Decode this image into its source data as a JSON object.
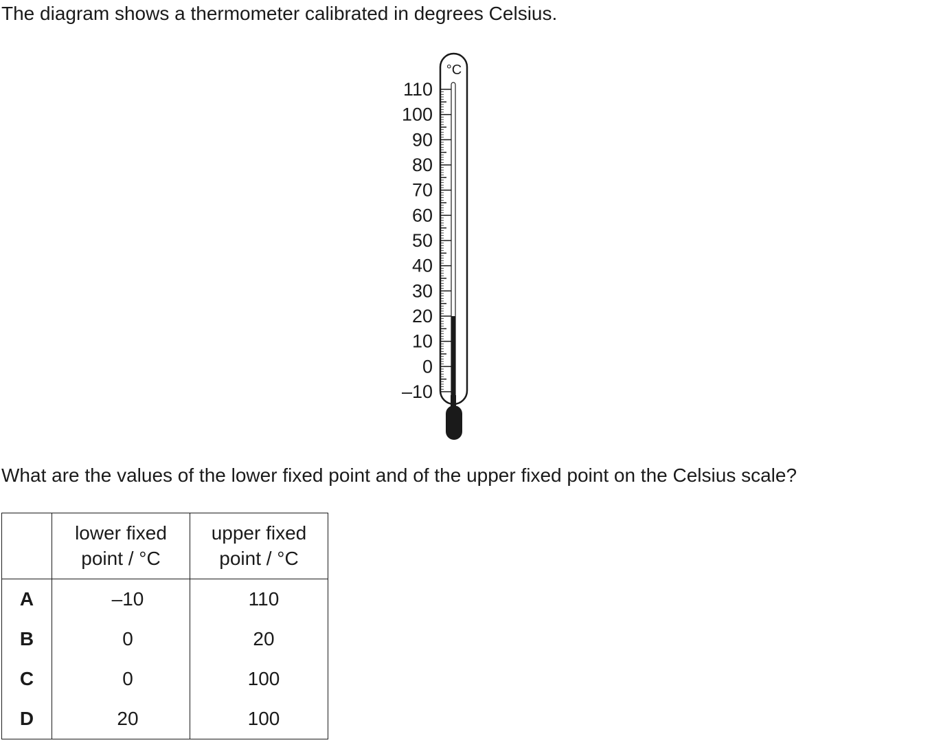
{
  "intro_text": "The diagram shows a thermometer calibrated in degrees Celsius.",
  "question_text": "What are the values of the lower fixed point and of the upper fixed point on the Celsius scale?",
  "thermometer": {
    "unit_label": "°C",
    "scale_labels": [
      "110",
      "100",
      "90",
      "80",
      "70",
      "60",
      "50",
      "40",
      "30",
      "20",
      "10",
      "0",
      "–10"
    ],
    "scale_min": -10,
    "scale_max": 110,
    "reading": 20
  },
  "table": {
    "headers": {
      "lower_line1": "lower fixed",
      "lower_line2": "point / °C",
      "upper_line1": "upper fixed",
      "upper_line2": "point / °C"
    },
    "rows": [
      {
        "key": "A",
        "lower": "–10",
        "upper": "110"
      },
      {
        "key": "B",
        "lower": "0",
        "upper": "20"
      },
      {
        "key": "C",
        "lower": "0",
        "upper": "100"
      },
      {
        "key": "D",
        "lower": "20",
        "upper": "100"
      }
    ]
  }
}
